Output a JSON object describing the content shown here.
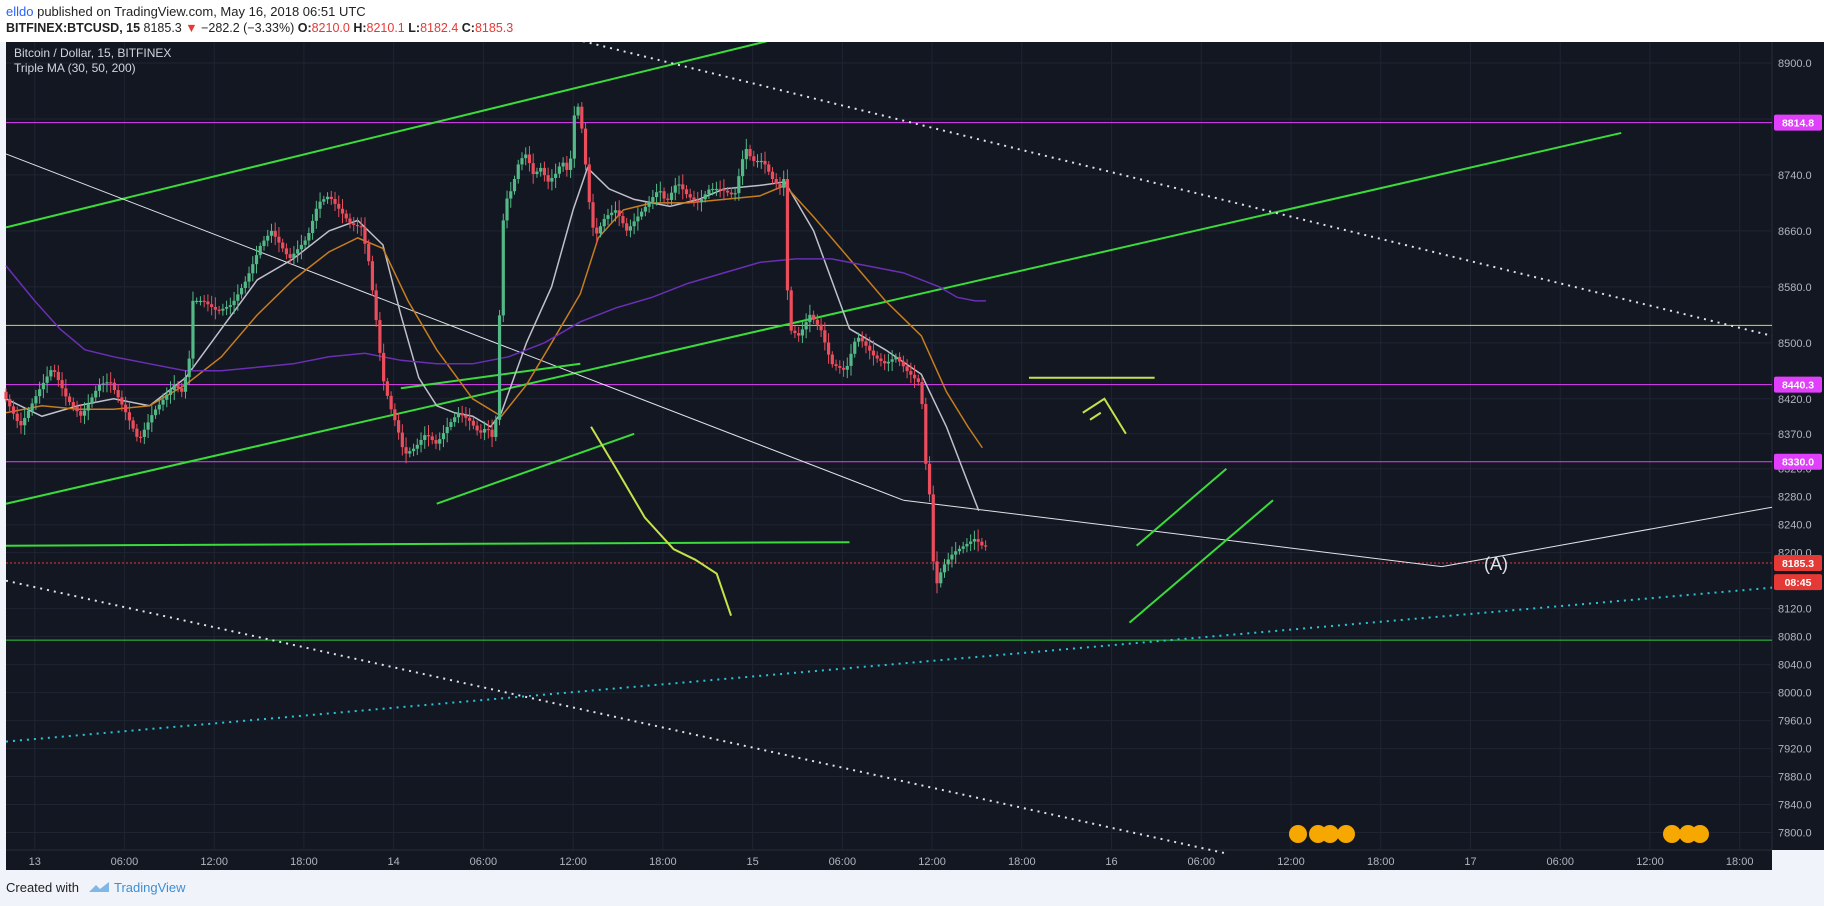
{
  "header": {
    "author": "elldo",
    "published_text": "published on TradingView.com, May 16, 2018 06:51 UTC",
    "symbol": "BITFINEX:BTCUSD, 15",
    "last": "8185.3",
    "change_arrow": "▼",
    "change": "−282.2 (−3.33%)",
    "o_label": "O:",
    "o_value": "8210.0",
    "h_label": "H:",
    "h_value": "8210.1",
    "l_label": "L:",
    "l_value": "8182.4",
    "c_label": "C:",
    "c_value": "8185.3"
  },
  "legend": {
    "title": "Bitcoin / Dollar, 15, BITFINEX",
    "indicator": "Triple MA (30, 50, 200)"
  },
  "footer": {
    "created_with": "Created with",
    "brand": "TradingView"
  },
  "chart_data": {
    "type": "line",
    "instrument": "BTCUSD",
    "exchange": "BITFINEX",
    "timeframe": "15",
    "x_ticks": [
      "13",
      "06:00",
      "12:00",
      "18:00",
      "14",
      "06:00",
      "12:00",
      "18:00",
      "15",
      "06:00",
      "12:00",
      "18:00",
      "16",
      "06:00",
      "12:00",
      "18:00",
      "17",
      "06:00",
      "12:00",
      "18:00"
    ],
    "y_ticks": [
      8900.0,
      8820.0,
      8740.0,
      8660.0,
      8580.0,
      8500.0,
      8420.0,
      8370.0,
      8320.0,
      8280.0,
      8240.0,
      8200.0,
      8120.0,
      8080.0,
      8040.0,
      8000.0,
      7960.0,
      7920.0,
      7880.0,
      7840.0,
      7800.0
    ],
    "ylim": [
      7775,
      8930
    ],
    "x_day_range": [
      0,
      4.92
    ],
    "grid": true,
    "price_labels": [
      {
        "value": 8814.8,
        "color": "#e040fb",
        "text": "8814.8"
      },
      {
        "value": 8440.3,
        "color": "#e040fb",
        "text": "8440.3"
      },
      {
        "value": 8330.0,
        "color": "#e040fb",
        "text": "8330.0"
      },
      {
        "value": 8185.3,
        "color": "#e53935",
        "text": "8185.3"
      },
      {
        "value": 8158.0,
        "color": "#e53935",
        "text": "08:45"
      }
    ],
    "annotation_text": "(A)",
    "price_path": [
      [
        0.0,
        8430
      ],
      [
        0.05,
        8380
      ],
      [
        0.1,
        8430
      ],
      [
        0.14,
        8465
      ],
      [
        0.18,
        8420
      ],
      [
        0.22,
        8395
      ],
      [
        0.27,
        8440
      ],
      [
        0.3,
        8445
      ],
      [
        0.34,
        8405
      ],
      [
        0.38,
        8360
      ],
      [
        0.42,
        8400
      ],
      [
        0.45,
        8420
      ],
      [
        0.48,
        8440
      ],
      [
        0.5,
        8430
      ],
      [
        0.52,
        8470
      ],
      [
        0.53,
        8560
      ],
      [
        0.56,
        8560
      ],
      [
        0.6,
        8545
      ],
      [
        0.64,
        8555
      ],
      [
        0.68,
        8590
      ],
      [
        0.72,
        8640
      ],
      [
        0.75,
        8660
      ],
      [
        0.8,
        8620
      ],
      [
        0.85,
        8650
      ],
      [
        0.88,
        8700
      ],
      [
        0.91,
        8710
      ],
      [
        0.94,
        8690
      ],
      [
        0.97,
        8670
      ],
      [
        1.0,
        8665
      ],
      [
        1.02,
        8620
      ],
      [
        1.04,
        8540
      ],
      [
        1.06,
        8450
      ],
      [
        1.08,
        8410
      ],
      [
        1.1,
        8380
      ],
      [
        1.12,
        8340
      ],
      [
        1.15,
        8350
      ],
      [
        1.18,
        8370
      ],
      [
        1.21,
        8355
      ],
      [
        1.24,
        8380
      ],
      [
        1.27,
        8400
      ],
      [
        1.3,
        8390
      ],
      [
        1.33,
        8370
      ],
      [
        1.35,
        8380
      ],
      [
        1.37,
        8360
      ],
      [
        1.38,
        8420
      ],
      [
        1.39,
        8640
      ],
      [
        1.4,
        8700
      ],
      [
        1.42,
        8720
      ],
      [
        1.44,
        8760
      ],
      [
        1.46,
        8770
      ],
      [
        1.48,
        8740
      ],
      [
        1.5,
        8750
      ],
      [
        1.52,
        8730
      ],
      [
        1.54,
        8740
      ],
      [
        1.56,
        8760
      ],
      [
        1.58,
        8740
      ],
      [
        1.59,
        8810
      ],
      [
        1.6,
        8850
      ],
      [
        1.62,
        8790
      ],
      [
        1.63,
        8720
      ],
      [
        1.65,
        8650
      ],
      [
        1.68,
        8680
      ],
      [
        1.71,
        8690
      ],
      [
        1.74,
        8660
      ],
      [
        1.77,
        8680
      ],
      [
        1.8,
        8700
      ],
      [
        1.83,
        8720
      ],
      [
        1.85,
        8700
      ],
      [
        1.88,
        8730
      ],
      [
        1.91,
        8710
      ],
      [
        1.94,
        8700
      ],
      [
        1.97,
        8720
      ],
      [
        2.0,
        8720
      ],
      [
        2.04,
        8710
      ],
      [
        2.07,
        8780
      ],
      [
        2.09,
        8760
      ],
      [
        2.12,
        8760
      ],
      [
        2.15,
        8730
      ],
      [
        2.17,
        8720
      ],
      [
        2.18,
        8740
      ],
      [
        2.19,
        8520
      ],
      [
        2.22,
        8510
      ],
      [
        2.25,
        8540
      ],
      [
        2.28,
        8520
      ],
      [
        2.31,
        8470
      ],
      [
        2.35,
        8460
      ],
      [
        2.38,
        8510
      ],
      [
        2.4,
        8500
      ],
      [
        2.43,
        8480
      ],
      [
        2.46,
        8470
      ],
      [
        2.49,
        8480
      ],
      [
        2.52,
        8460
      ],
      [
        2.54,
        8450
      ],
      [
        2.56,
        8440
      ],
      [
        2.57,
        8330
      ],
      [
        2.58,
        8320
      ],
      [
        2.59,
        8210
      ],
      [
        2.6,
        8150
      ],
      [
        2.62,
        8180
      ],
      [
        2.65,
        8200
      ],
      [
        2.68,
        8210
      ],
      [
        2.71,
        8220
      ],
      [
        2.73,
        8210
      ]
    ],
    "series": [
      {
        "name": "Triple MA (30, 50, 200)",
        "color": "#c0c0cc",
        "values": [
          [
            0.0,
            8420
          ],
          [
            0.1,
            8395
          ],
          [
            0.2,
            8410
          ],
          [
            0.3,
            8420
          ],
          [
            0.4,
            8410
          ],
          [
            0.5,
            8450
          ],
          [
            0.6,
            8520
          ],
          [
            0.7,
            8590
          ],
          [
            0.8,
            8620
          ],
          [
            0.9,
            8660
          ],
          [
            0.98,
            8675
          ],
          [
            1.05,
            8640
          ],
          [
            1.1,
            8540
          ],
          [
            1.15,
            8450
          ],
          [
            1.2,
            8410
          ],
          [
            1.25,
            8400
          ],
          [
            1.3,
            8395
          ],
          [
            1.35,
            8380
          ],
          [
            1.38,
            8400
          ],
          [
            1.45,
            8500
          ],
          [
            1.52,
            8580
          ],
          [
            1.58,
            8690
          ],
          [
            1.62,
            8750
          ],
          [
            1.68,
            8720
          ],
          [
            1.75,
            8705
          ],
          [
            1.85,
            8695
          ],
          [
            1.93,
            8705
          ],
          [
            2.0,
            8720
          ],
          [
            2.1,
            8725
          ],
          [
            2.17,
            8730
          ],
          [
            2.25,
            8660
          ],
          [
            2.35,
            8520
          ],
          [
            2.45,
            8490
          ],
          [
            2.55,
            8455
          ],
          [
            2.62,
            8380
          ],
          [
            2.68,
            8300
          ],
          [
            2.71,
            8260
          ]
        ]
      },
      {
        "name": "Triple MA (30, 50, 200)",
        "color": "#c77d1e",
        "values": [
          [
            0.0,
            8400
          ],
          [
            0.1,
            8410
          ],
          [
            0.2,
            8405
          ],
          [
            0.3,
            8405
          ],
          [
            0.4,
            8410
          ],
          [
            0.5,
            8440
          ],
          [
            0.6,
            8480
          ],
          [
            0.7,
            8540
          ],
          [
            0.8,
            8590
          ],
          [
            0.9,
            8630
          ],
          [
            0.98,
            8650
          ],
          [
            1.05,
            8635
          ],
          [
            1.12,
            8560
          ],
          [
            1.2,
            8490
          ],
          [
            1.3,
            8420
          ],
          [
            1.38,
            8395
          ],
          [
            1.45,
            8440
          ],
          [
            1.52,
            8500
          ],
          [
            1.6,
            8570
          ],
          [
            1.65,
            8650
          ],
          [
            1.72,
            8690
          ],
          [
            1.8,
            8700
          ],
          [
            1.9,
            8700
          ],
          [
            2.0,
            8705
          ],
          [
            2.1,
            8710
          ],
          [
            2.17,
            8725
          ],
          [
            2.25,
            8680
          ],
          [
            2.35,
            8620
          ],
          [
            2.45,
            8560
          ],
          [
            2.55,
            8510
          ],
          [
            2.62,
            8430
          ],
          [
            2.68,
            8380
          ],
          [
            2.72,
            8350
          ]
        ]
      },
      {
        "name": "Triple MA (30, 50, 200)",
        "color": "#6a2fb5",
        "values": [
          [
            0.0,
            8610
          ],
          [
            0.08,
            8560
          ],
          [
            0.15,
            8520
          ],
          [
            0.22,
            8490
          ],
          [
            0.3,
            8480
          ],
          [
            0.4,
            8470
          ],
          [
            0.5,
            8460
          ],
          [
            0.6,
            8460
          ],
          [
            0.7,
            8465
          ],
          [
            0.8,
            8470
          ],
          [
            0.9,
            8480
          ],
          [
            1.0,
            8485
          ],
          [
            1.1,
            8475
          ],
          [
            1.2,
            8470
          ],
          [
            1.3,
            8470
          ],
          [
            1.4,
            8480
          ],
          [
            1.5,
            8500
          ],
          [
            1.6,
            8530
          ],
          [
            1.7,
            8550
          ],
          [
            1.8,
            8565
          ],
          [
            1.9,
            8585
          ],
          [
            2.0,
            8600
          ],
          [
            2.1,
            8615
          ],
          [
            2.2,
            8620
          ],
          [
            2.3,
            8620
          ],
          [
            2.4,
            8610
          ],
          [
            2.5,
            8600
          ],
          [
            2.55,
            8590
          ],
          [
            2.6,
            8580
          ],
          [
            2.65,
            8565
          ],
          [
            2.7,
            8560
          ],
          [
            2.73,
            8560
          ]
        ]
      }
    ]
  }
}
